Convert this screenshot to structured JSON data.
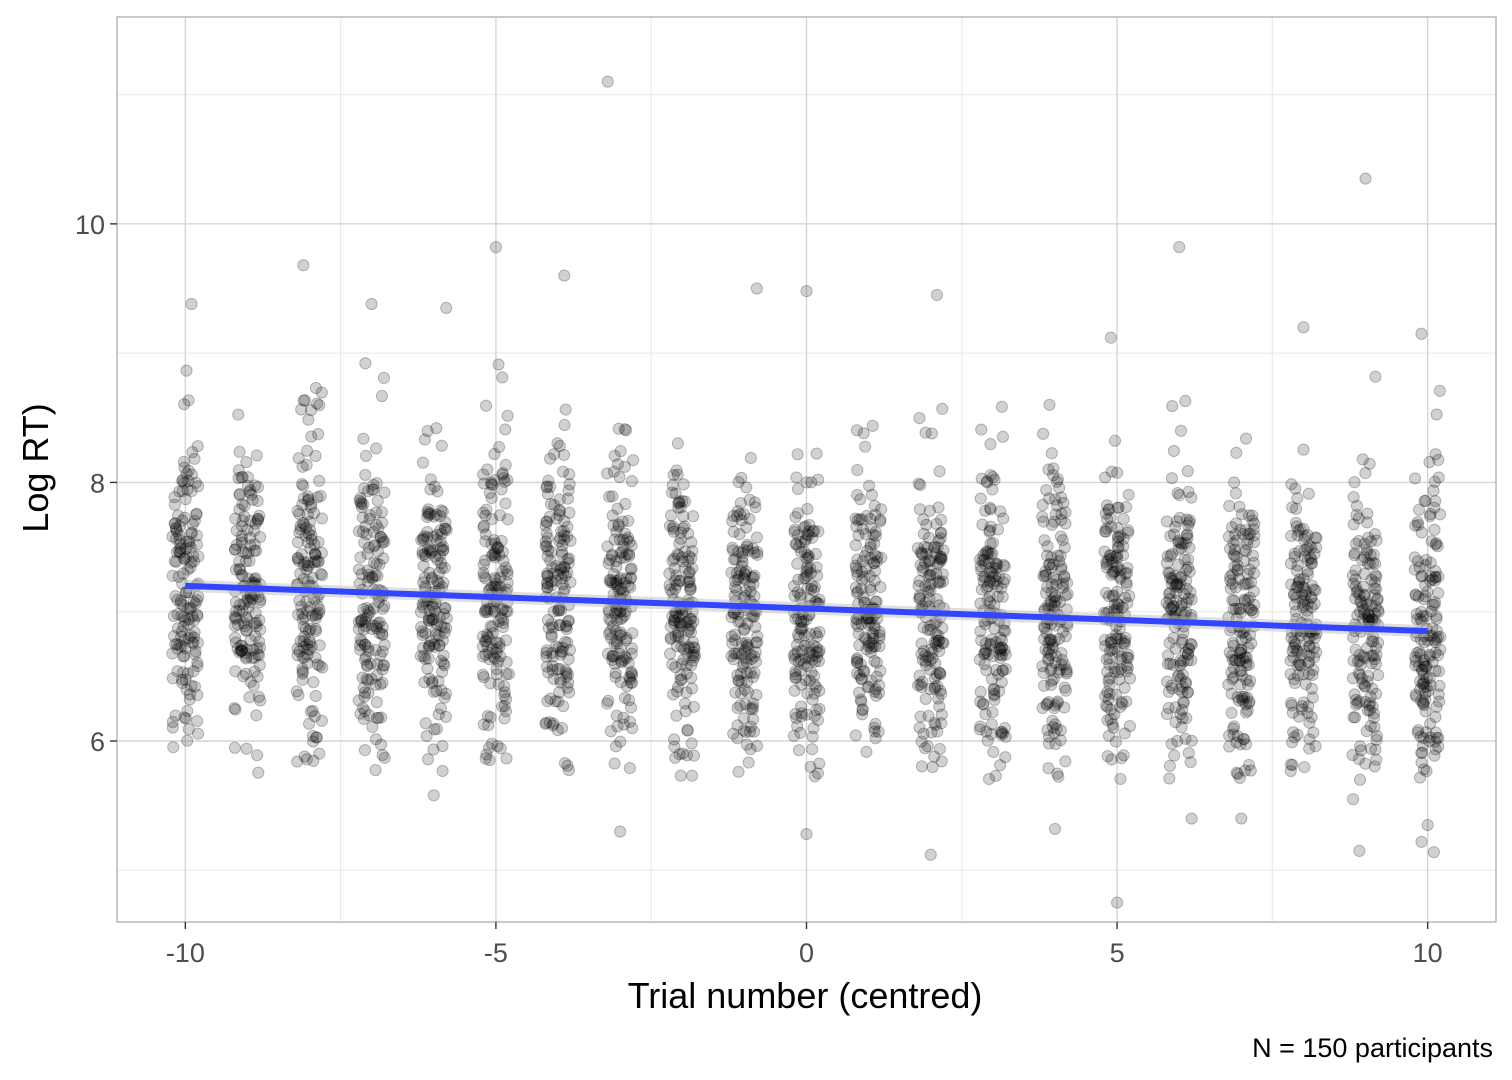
{
  "chart_data": {
    "type": "scatter",
    "title": "",
    "xlabel": "Trial number (centred)",
    "ylabel": "Log RT)",
    "caption": "N = 150 participants",
    "xlim": [
      -11.1,
      11.1
    ],
    "ylim": [
      4.6,
      11.6
    ],
    "x_ticks": [
      -10,
      -5,
      0,
      5,
      10
    ],
    "x_tick_labels": [
      "-10",
      "-5",
      "0",
      "5",
      "10"
    ],
    "y_ticks": [
      6,
      8,
      10
    ],
    "y_tick_labels": [
      "6",
      "8",
      "10"
    ],
    "x_minor_grid": [
      -7.5,
      -2.5,
      2.5,
      7.5
    ],
    "y_minor_grid": [
      5,
      7,
      9,
      11
    ],
    "grid": true,
    "point_color": "#000000",
    "point_alpha": 0.18,
    "trend_color": "#3346ff",
    "trial_values": [
      -10,
      -9,
      -8,
      -7,
      -6,
      -5,
      -4,
      -3,
      -2,
      -1,
      0,
      1,
      2,
      3,
      4,
      5,
      6,
      7,
      8,
      9,
      10
    ],
    "points_per_trial": 150,
    "trend_line": {
      "x": [
        -10,
        10
      ],
      "y": [
        7.2,
        6.85
      ]
    },
    "notable_points": [
      {
        "x": -3.2,
        "y": 11.1
      },
      {
        "x": 9.0,
        "y": 10.35
      },
      {
        "x": 6.0,
        "y": 9.82
      },
      {
        "x": -5.0,
        "y": 9.82
      },
      {
        "x": -8.1,
        "y": 9.68
      },
      {
        "x": -3.9,
        "y": 9.6
      },
      {
        "x": -0.8,
        "y": 9.5
      },
      {
        "x": 0.0,
        "y": 9.48
      },
      {
        "x": 2.1,
        "y": 9.45
      },
      {
        "x": -9.9,
        "y": 9.38
      },
      {
        "x": -7.0,
        "y": 9.38
      },
      {
        "x": -5.8,
        "y": 9.35
      },
      {
        "x": 8.0,
        "y": 9.2
      },
      {
        "x": 9.9,
        "y": 9.15
      },
      {
        "x": 4.9,
        "y": 9.12
      },
      {
        "x": -3.0,
        "y": 5.3
      },
      {
        "x": 0.0,
        "y": 5.28
      },
      {
        "x": 2.0,
        "y": 5.12
      },
      {
        "x": 4.0,
        "y": 5.32
      },
      {
        "x": 5.0,
        "y": 4.75
      },
      {
        "x": 8.8,
        "y": 5.55
      },
      {
        "x": 8.9,
        "y": 5.15
      },
      {
        "x": 9.9,
        "y": 5.22
      },
      {
        "x": 10.0,
        "y": 5.35
      },
      {
        "x": 10.1,
        "y": 5.14
      },
      {
        "x": 7.0,
        "y": 5.4
      },
      {
        "x": 6.2,
        "y": 5.4
      },
      {
        "x": -6.0,
        "y": 5.58
      }
    ]
  }
}
